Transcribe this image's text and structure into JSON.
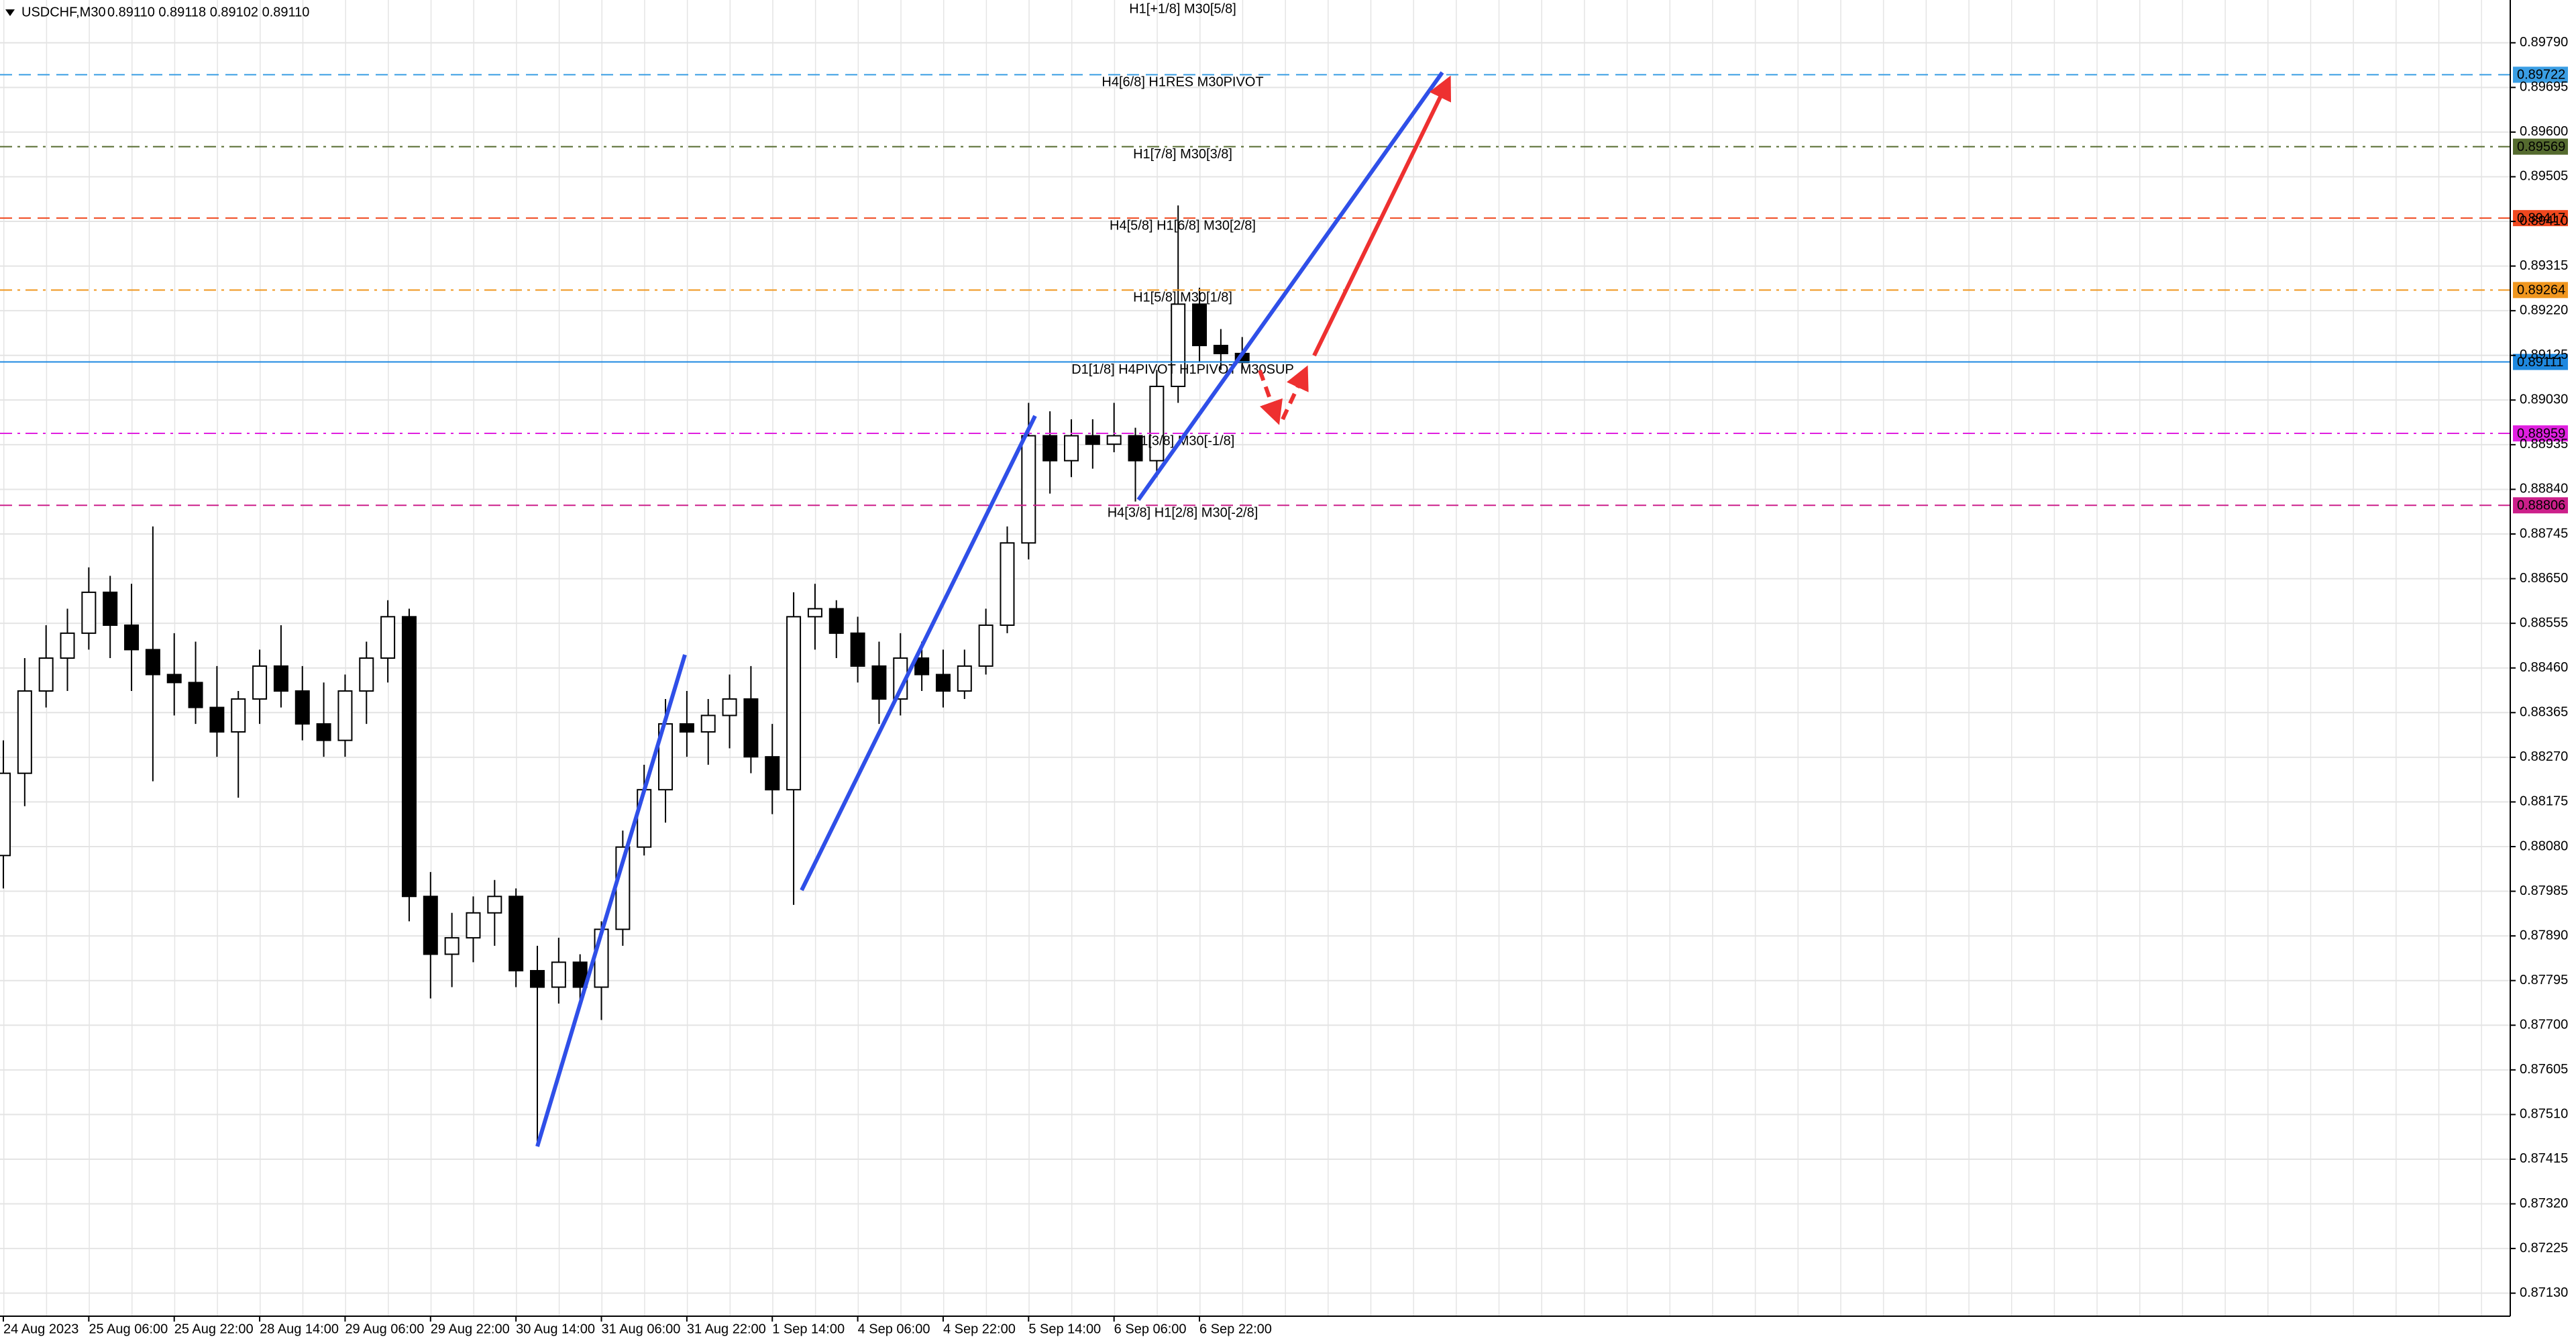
{
  "chart_data": {
    "type": "candlestick",
    "header": {
      "symbol": "USDCHF,M30",
      "quote": "0.89110 0.89118 0.89102 0.89110"
    },
    "top_label": {
      "text": "H1[+1/8] M30[5/8]",
      "color": "#6b7d3a"
    },
    "categories": [
      "24 Aug 2023",
      null,
      null,
      null,
      "25 Aug 06:00",
      null,
      null,
      null,
      "25 Aug 22:00",
      null,
      null,
      null,
      "28 Aug 14:00",
      null,
      null,
      null,
      "29 Aug 06:00",
      null,
      null,
      null,
      "29 Aug 22:00",
      null,
      null,
      null,
      "30 Aug 14:00",
      null,
      null,
      null,
      "31 Aug 06:00",
      null,
      null,
      null,
      "31 Aug 22:00",
      null,
      null,
      null,
      "1 Sep 14:00",
      null,
      null,
      null,
      "4 Sep 06:00",
      null,
      null,
      null,
      "4 Sep 22:00",
      null,
      null,
      null,
      "5 Sep 14:00",
      null,
      null,
      null,
      "6 Sep 06:00",
      null,
      null,
      null,
      "6 Sep 22:00",
      null,
      null
    ],
    "open": [
      0.88061,
      0.88236,
      0.88411,
      0.88481,
      0.88534,
      0.88621,
      0.88551,
      0.88499,
      0.88446,
      0.88429,
      0.88376,
      0.88324,
      0.88394,
      0.88464,
      0.88411,
      0.88341,
      0.88306,
      0.88411,
      0.88481,
      0.88569,
      0.87974,
      0.87851,
      0.87886,
      0.87939,
      0.87974,
      0.87816,
      0.87781,
      0.87834,
      0.87781,
      0.87904,
      0.88079,
      0.88201,
      0.88341,
      0.88324,
      0.88359,
      0.88394,
      0.88271,
      0.88201,
      0.88569,
      0.88586,
      0.88534,
      0.88464,
      0.88394,
      0.88481,
      0.88446,
      0.88411,
      0.88464,
      0.88551,
      0.88726,
      0.88954,
      0.88901,
      0.88954,
      0.88936,
      0.88954,
      0.88901,
      0.89059,
      0.89234,
      0.89146,
      0.89129
    ],
    "high": [
      0.88306,
      0.88481,
      0.88551,
      0.88586,
      0.88674,
      0.88656,
      0.88639,
      0.88761,
      0.88534,
      0.88516,
      0.88464,
      0.88411,
      0.88499,
      0.88551,
      0.88464,
      0.88429,
      0.88446,
      0.88516,
      0.88604,
      0.88586,
      0.88026,
      0.87939,
      0.87974,
      0.88009,
      0.87991,
      0.87869,
      0.87886,
      0.87851,
      0.87921,
      0.88114,
      0.88254,
      0.88394,
      0.88411,
      0.88394,
      0.88446,
      0.88464,
      0.88341,
      0.88621,
      0.88639,
      0.88604,
      0.88569,
      0.88516,
      0.88534,
      0.88516,
      0.88499,
      0.88499,
      0.88586,
      0.88761,
      0.89024,
      0.89006,
      0.88989,
      0.88989,
      0.89024,
      0.88971,
      0.89094,
      0.89444,
      0.89269,
      0.89181,
      0.89164
    ],
    "low": [
      0.87991,
      0.88166,
      0.88376,
      0.88411,
      0.88499,
      0.88481,
      0.88411,
      0.88219,
      0.88359,
      0.88341,
      0.88271,
      0.88184,
      0.88341,
      0.88376,
      0.88306,
      0.88271,
      0.88271,
      0.88341,
      0.88429,
      0.87921,
      0.87757,
      0.87781,
      0.87834,
      0.87869,
      0.87781,
      0.87449,
      0.87746,
      0.87746,
      0.87711,
      0.87869,
      0.88061,
      0.88131,
      0.88271,
      0.88254,
      0.88289,
      0.88236,
      0.88149,
      0.87956,
      0.88499,
      0.88481,
      0.88429,
      0.88341,
      0.88359,
      0.88411,
      0.88376,
      0.88394,
      0.88446,
      0.88534,
      0.88691,
      0.88831,
      0.88866,
      0.88884,
      0.88919,
      0.88814,
      0.88866,
      0.89024,
      0.89111,
      0.89094,
      0.89094
    ],
    "close": [
      0.88236,
      0.88411,
      0.88481,
      0.88534,
      0.88621,
      0.88551,
      0.88499,
      0.88446,
      0.88429,
      0.88376,
      0.88324,
      0.88394,
      0.88464,
      0.88411,
      0.88341,
      0.88306,
      0.88411,
      0.88481,
      0.88569,
      0.87974,
      0.87851,
      0.87886,
      0.87939,
      0.87974,
      0.87816,
      0.87781,
      0.87834,
      0.87781,
      0.87904,
      0.88079,
      0.88201,
      0.88341,
      0.88324,
      0.88359,
      0.88394,
      0.88271,
      0.88201,
      0.88569,
      0.88586,
      0.88534,
      0.88464,
      0.88394,
      0.88481,
      0.88446,
      0.88411,
      0.88464,
      0.88551,
      0.88726,
      0.88954,
      0.88901,
      0.88954,
      0.88936,
      0.88954,
      0.88901,
      0.89059,
      0.89234,
      0.89146,
      0.89129,
      0.8911
    ],
    "up_color": "#ffffff",
    "down_color": "#000000",
    "levels": [
      {
        "price": 0.89722,
        "label": "H4[6/8] H1RES M30PIVOT",
        "color": "#3a9ee4",
        "dash": "dashed"
      },
      {
        "price": 0.89569,
        "label": "H1[7/8] M30[3/8]",
        "color": "#556b2f",
        "dash": "dashdot"
      },
      {
        "price": 0.89417,
        "label": "H4[5/8] H1[6/8] M30[2/8]",
        "color": "#f0481e",
        "dash": "dashed"
      },
      {
        "price": 0.89264,
        "label": "H1[5/8] M30[1/8]",
        "color": "#f0961e",
        "dash": "dashdot"
      },
      {
        "price": 0.89111,
        "label": "D1[1/8] H4PIVOT H1PIVOT M30SUP",
        "color": "#1e88e0",
        "dash": "solid"
      },
      {
        "price": 0.88959,
        "label": "H1[3/8] M30[-1/8]",
        "color": "#e020e0",
        "dash": "dashdot"
      },
      {
        "price": 0.88806,
        "label": "H4[3/8] H1[2/8] M30[-2/8]",
        "color": "#cc1f8a",
        "dash": "dashed"
      }
    ],
    "ylim": [
      0.87081,
      0.89881
    ],
    "yticks": [
      {
        "value": 0.8979,
        "label": "0.89790"
      },
      0.89695,
      {
        "value": 0.896,
        "label": "0.89600"
      },
      0.89505,
      {
        "value": 0.8941,
        "label": "0.89410"
      },
      0.89315,
      {
        "value": 0.8922,
        "label": "0.89220"
      },
      0.89125,
      {
        "value": 0.8903,
        "label": "0.89030"
      },
      0.88935,
      {
        "value": 0.8884,
        "label": "0.88840"
      },
      0.88745,
      {
        "value": 0.8865,
        "label": "0.88650"
      },
      0.88555,
      {
        "value": 0.8846,
        "label": "0.88460"
      },
      0.88365,
      {
        "value": 0.8827,
        "label": "0.88270"
      },
      0.88175,
      {
        "value": 0.8808,
        "label": "0.88080"
      },
      0.87985,
      {
        "value": 0.8789,
        "label": "0.87890"
      },
      0.87795,
      {
        "value": 0.877,
        "label": "0.87700"
      },
      0.87605,
      {
        "value": 0.8751,
        "label": "0.87510"
      },
      0.87415,
      {
        "value": 0.8732,
        "label": "0.87320"
      },
      0.87225,
      {
        "value": 0.8713,
        "label": "0.87130"
      }
    ],
    "grid": true
  }
}
